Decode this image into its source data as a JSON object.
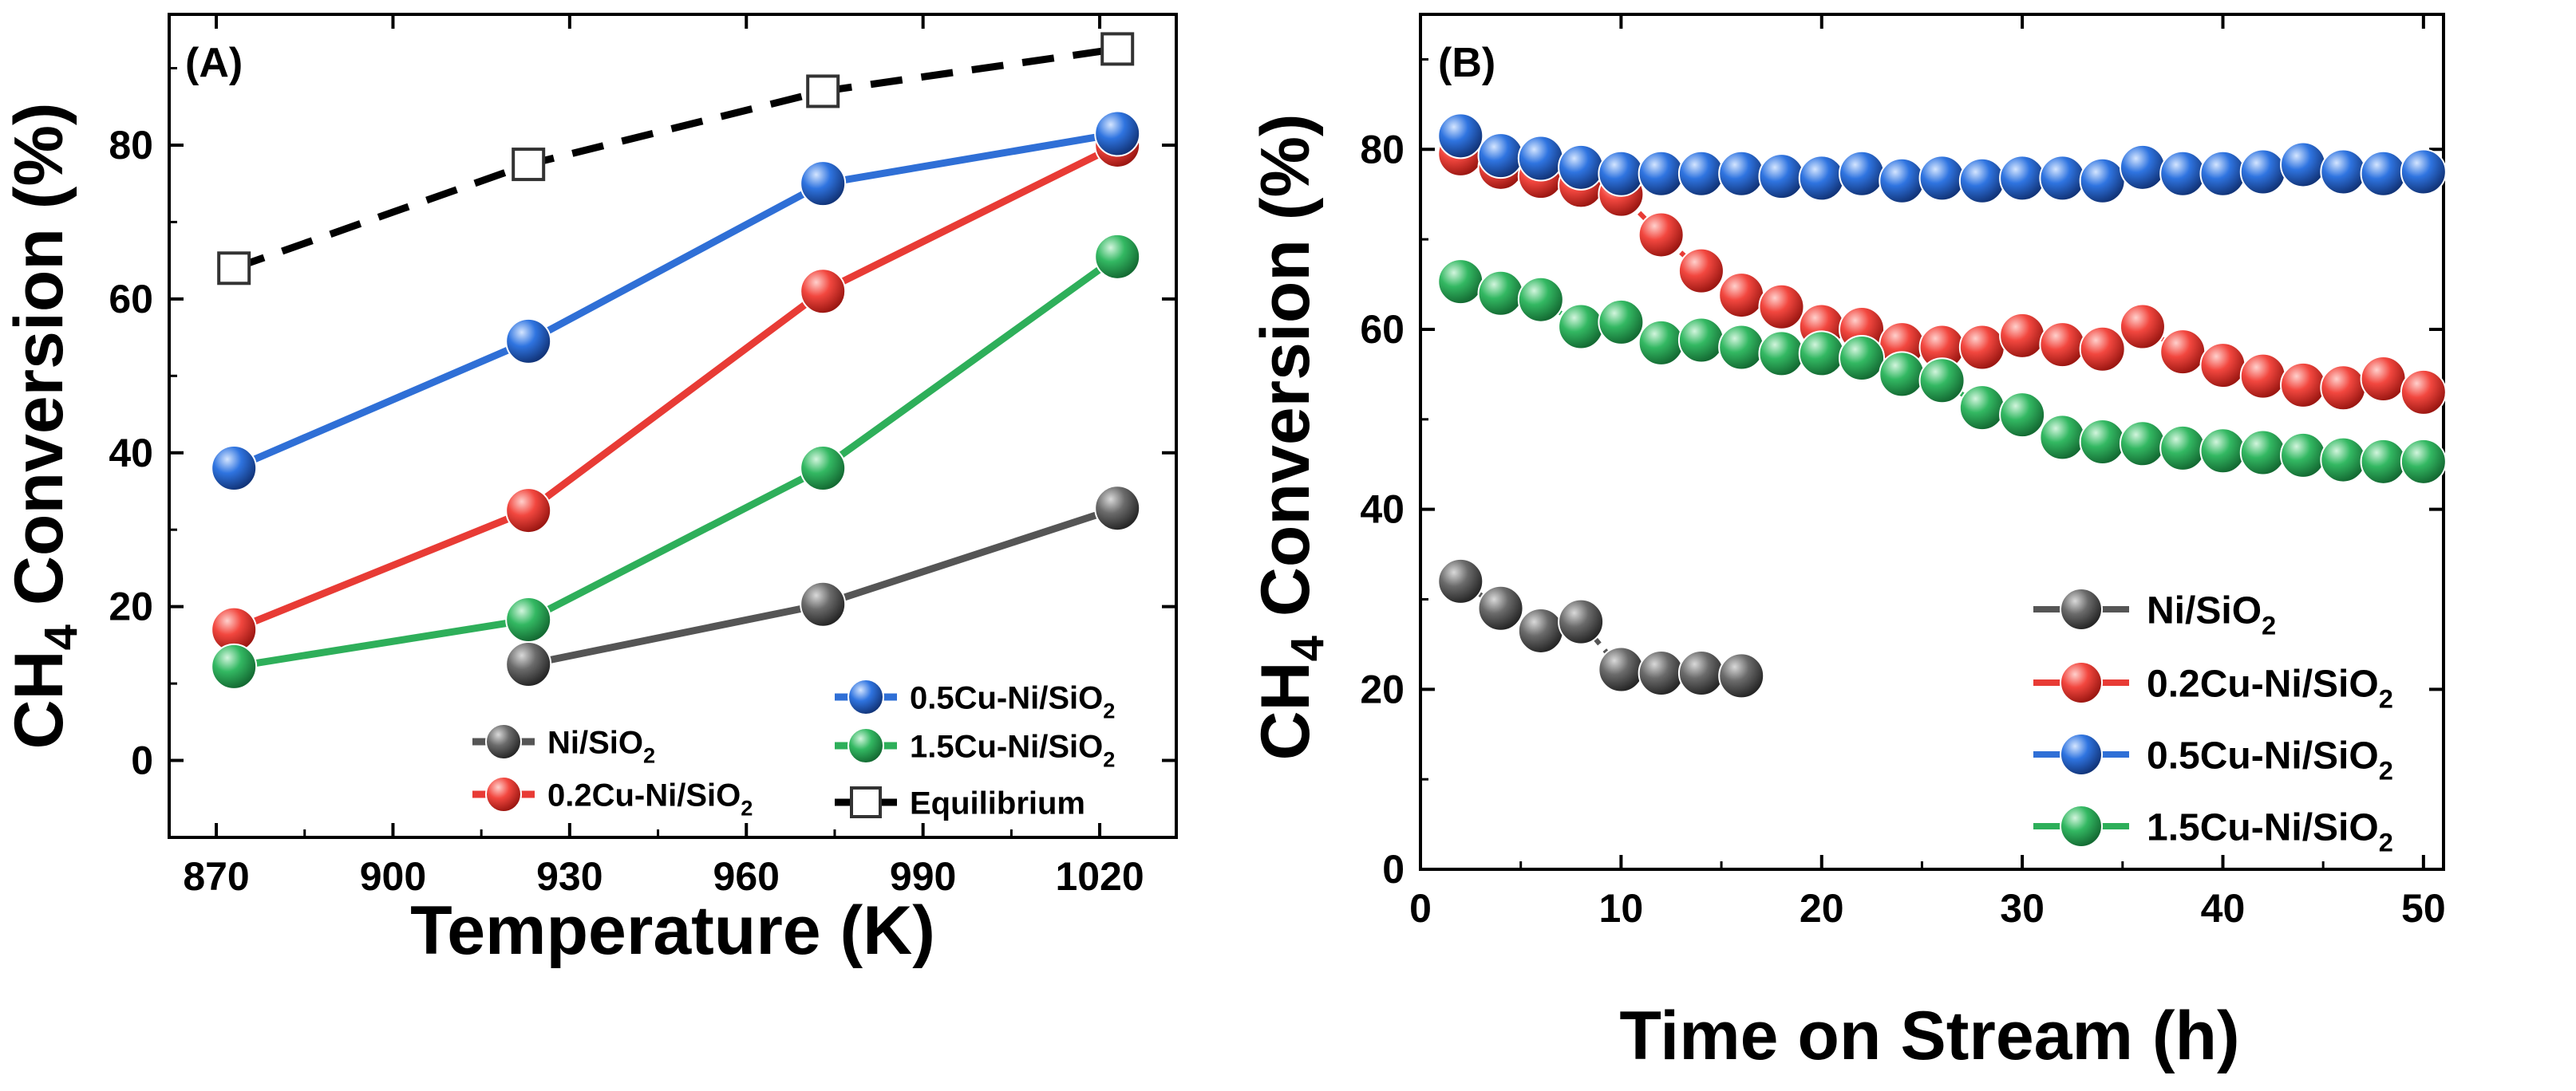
{
  "chart_data": [
    {
      "panel": "(A)",
      "type": "line",
      "xlabel": "Temperature (K)",
      "ylabel": {
        "main": "CH",
        "sub": "4",
        "rest": " Conversion (%)"
      },
      "xlim": [
        862,
        1033
      ],
      "ylim": [
        -10,
        97
      ],
      "xticks": [
        870,
        900,
        930,
        960,
        990,
        1020
      ],
      "yticks": [
        0,
        20,
        40,
        60,
        80
      ],
      "series": [
        {
          "key": "ni",
          "name": "Ni/SiO",
          "sub": "2",
          "color": "#555555",
          "marker": "sphere",
          "dash": false,
          "x": [
            923,
            973,
            1023
          ],
          "y": [
            12.5,
            20.3,
            32.8
          ]
        },
        {
          "key": "cu02",
          "name": "0.2Cu-Ni/SiO",
          "sub": "2",
          "color": "#e83b35",
          "marker": "sphere",
          "dash": false,
          "x": [
            873,
            923,
            973,
            1023
          ],
          "y": [
            17,
            32.5,
            61,
            80
          ]
        },
        {
          "key": "cu05",
          "name": "0.5Cu-Ni/SiO",
          "sub": "2",
          "color": "#2f6fd6",
          "marker": "sphere",
          "dash": false,
          "x": [
            873,
            923,
            973,
            1023
          ],
          "y": [
            38,
            54.5,
            75,
            81.5
          ]
        },
        {
          "key": "cu15",
          "name": "1.5Cu-Ni/SiO",
          "sub": "2",
          "color": "#2eaf5a",
          "marker": "sphere",
          "dash": false,
          "x": [
            873,
            923,
            973,
            1023
          ],
          "y": [
            12.2,
            18.3,
            38,
            65.5
          ]
        },
        {
          "key": "eq",
          "name": "Equilibrium",
          "sub": "",
          "color": "#000000",
          "marker": "square",
          "dash": true,
          "x": [
            873,
            923,
            973,
            1023
          ],
          "y": [
            64,
            77.5,
            87,
            92.5
          ]
        }
      ]
    },
    {
      "panel": "(B)",
      "type": "scatter",
      "xlabel": "Time on Stream (h)",
      "ylabel": {
        "main": "CH",
        "sub": "4",
        "rest": " Conversion (%)"
      },
      "xlim": [
        0,
        51
      ],
      "ylim": [
        0,
        95
      ],
      "xticks": [
        0,
        10,
        20,
        30,
        40,
        50
      ],
      "yticks": [
        0,
        20,
        40,
        60,
        80
      ],
      "series": [
        {
          "key": "ni",
          "name": "Ni/SiO",
          "sub": "2",
          "color": "#555555",
          "marker": "sphere",
          "dash": true,
          "x": [
            2,
            4,
            6,
            8,
            10,
            12,
            14,
            16
          ],
          "y": [
            32,
            29,
            26.5,
            27.5,
            22.2,
            21.8,
            21.8,
            21.5
          ]
        },
        {
          "key": "cu02",
          "name": "0.2Cu-Ni/SiO",
          "sub": "2",
          "color": "#e83b35",
          "marker": "sphere",
          "dash": true,
          "x": [
            2,
            4,
            6,
            8,
            10,
            12,
            14,
            16,
            18,
            20,
            22,
            24,
            26,
            28,
            30,
            32,
            34,
            36,
            38,
            40,
            42,
            44,
            46,
            48,
            50
          ],
          "y": [
            79.5,
            78,
            77,
            76,
            75,
            70.5,
            66.5,
            63.8,
            62.5,
            60.3,
            60,
            58.3,
            58,
            58,
            59.3,
            58.3,
            57.8,
            60.3,
            57.5,
            56,
            54.8,
            53.8,
            53.5,
            54.5,
            53
          ]
        },
        {
          "key": "cu05",
          "name": "0.5Cu-Ni/SiO",
          "sub": "2",
          "color": "#2f6fd6",
          "marker": "sphere",
          "dash": true,
          "x": [
            2,
            4,
            6,
            8,
            10,
            12,
            14,
            16,
            18,
            20,
            22,
            24,
            26,
            28,
            30,
            32,
            34,
            36,
            38,
            40,
            42,
            44,
            46,
            48,
            50
          ],
          "y": [
            81.5,
            79.3,
            79,
            78,
            77.3,
            77.3,
            77.3,
            77.3,
            77,
            76.8,
            77.3,
            76.5,
            76.8,
            76.5,
            76.8,
            76.8,
            76.5,
            78,
            77.3,
            77.3,
            77.5,
            78.3,
            77.5,
            77.3,
            77.5
          ]
        },
        {
          "key": "cu15",
          "name": "1.5Cu-Ni/SiO",
          "sub": "2",
          "color": "#2eaf5a",
          "marker": "sphere",
          "dash": true,
          "x": [
            2,
            4,
            6,
            8,
            10,
            12,
            14,
            16,
            18,
            20,
            22,
            24,
            26,
            28,
            30,
            32,
            34,
            36,
            38,
            40,
            42,
            44,
            46,
            48,
            50
          ],
          "y": [
            65.3,
            64,
            63.3,
            60.3,
            60.8,
            58.5,
            58.8,
            58,
            57.3,
            57.3,
            56.8,
            55,
            54.3,
            51.3,
            50.5,
            48,
            47.5,
            47.3,
            46.8,
            46.5,
            46.3,
            46,
            45.5,
            45.3,
            45.3
          ]
        }
      ]
    }
  ]
}
